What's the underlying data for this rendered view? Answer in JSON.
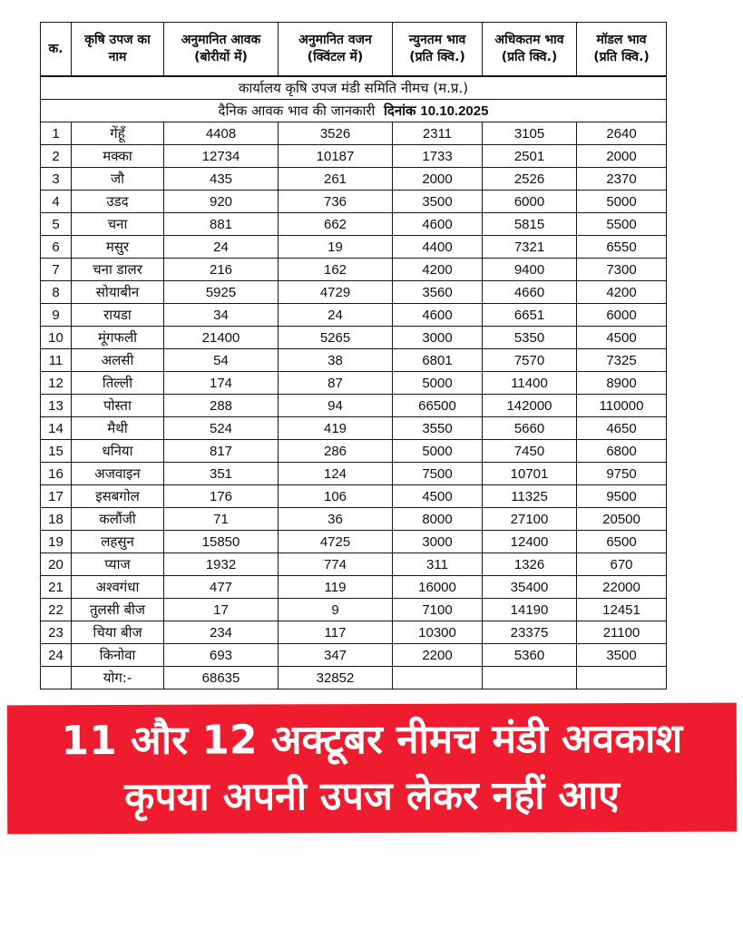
{
  "document": {
    "title": "कार्यालय कृषि उपज मंडी समिति नीमच (म.प्र.)",
    "subtitle_text": "दैनिक आवक भाव की जानकारी",
    "subtitle_date_label": "दिनांक",
    "subtitle_date": "10.10.2025"
  },
  "table": {
    "headers": [
      {
        "line1": "क.",
        "line2": ""
      },
      {
        "line1": "कृषि उपज का",
        "line2": "नाम"
      },
      {
        "line1": "अनुमानित आवक",
        "line2": "(बोरीयों में)"
      },
      {
        "line1": "अनुमानित वजन",
        "line2": "(क्विंटल में)"
      },
      {
        "line1": "न्युनतम भाव",
        "line2": "(प्रति क्वि.)"
      },
      {
        "line1": "अधिकतम भाव",
        "line2": "(प्रति क्वि.)"
      },
      {
        "line1": "मॉडल भाव",
        "line2": "(प्रति क्वि.)"
      }
    ],
    "rows": [
      [
        "1",
        "गेंहूँ",
        "4408",
        "3526",
        "2311",
        "3105",
        "2640"
      ],
      [
        "2",
        "मक्का",
        "12734",
        "10187",
        "1733",
        "2501",
        "2000"
      ],
      [
        "3",
        "जौ",
        "435",
        "261",
        "2000",
        "2526",
        "2370"
      ],
      [
        "4",
        "उडद",
        "920",
        "736",
        "3500",
        "6000",
        "5000"
      ],
      [
        "5",
        "चना",
        "881",
        "662",
        "4600",
        "5815",
        "5500"
      ],
      [
        "6",
        "मसुर",
        "24",
        "19",
        "4400",
        "7321",
        "6550"
      ],
      [
        "7",
        "चना डालर",
        "216",
        "162",
        "4200",
        "9400",
        "7300"
      ],
      [
        "8",
        "सोयाबीन",
        "5925",
        "4729",
        "3560",
        "4660",
        "4200"
      ],
      [
        "9",
        "रायडा",
        "34",
        "24",
        "4600",
        "6651",
        "6000"
      ],
      [
        "10",
        "मूंगफली",
        "21400",
        "5265",
        "3000",
        "5350",
        "4500"
      ],
      [
        "11",
        "अलसी",
        "54",
        "38",
        "6801",
        "7570",
        "7325"
      ],
      [
        "12",
        "तिल्ली",
        "174",
        "87",
        "5000",
        "11400",
        "8900"
      ],
      [
        "13",
        "पोस्ता",
        "288",
        "94",
        "66500",
        "142000",
        "110000"
      ],
      [
        "14",
        "मैथी",
        "524",
        "419",
        "3550",
        "5660",
        "4650"
      ],
      [
        "15",
        "धनिया",
        "817",
        "286",
        "5000",
        "7450",
        "6800"
      ],
      [
        "16",
        "अजवाइन",
        "351",
        "124",
        "7500",
        "10701",
        "9750"
      ],
      [
        "17",
        "इसबगोल",
        "176",
        "106",
        "4500",
        "11325",
        "9500"
      ],
      [
        "18",
        "कलौंजी",
        "71",
        "36",
        "8000",
        "27100",
        "20500"
      ],
      [
        "19",
        "लहसुन",
        "15850",
        "4725",
        "3000",
        "12400",
        "6500"
      ],
      [
        "20",
        "प्याज",
        "1932",
        "774",
        "311",
        "1326",
        "670"
      ],
      [
        "21",
        "अश्वगंधा",
        "477",
        "119",
        "16000",
        "35400",
        "22000"
      ],
      [
        "22",
        "तुलसी बीज",
        "17",
        "9",
        "7100",
        "14190",
        "12451"
      ],
      [
        "23",
        "चिया बीज",
        "234",
        "117",
        "10300",
        "23375",
        "21100"
      ],
      [
        "24",
        "किनोवा",
        "693",
        "347",
        "2200",
        "5360",
        "3500"
      ]
    ],
    "total_row": [
      "",
      "योग:-",
      "68635",
      "32852",
      "",
      "",
      ""
    ]
  },
  "banner": {
    "line1": "11 और 12 अक्टूबर नीमच मंडी अवकाश",
    "line2": "कृपया अपनी उपज लेकर नहीं आए",
    "bg_color": "#ee1c2e",
    "text_color": "#ffffff"
  },
  "colors": {
    "table_border": "#161616",
    "page_background": "#ffffff"
  }
}
